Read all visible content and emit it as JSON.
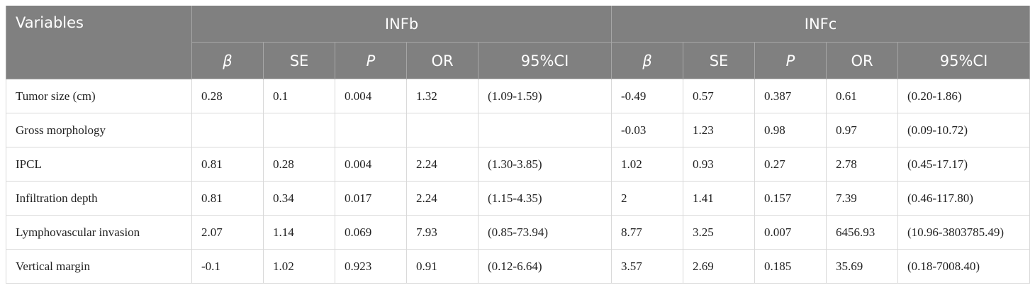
{
  "table": {
    "header": {
      "variables": "Variables",
      "group_infb": "INFb",
      "group_infc": "INFc",
      "cols": [
        "β",
        "SE",
        "P",
        "OR",
        "95%CI"
      ]
    },
    "rows": [
      {
        "variable": "Tumor size (cm)",
        "infb": [
          "0.28",
          "0.1",
          "0.004",
          "1.32",
          "(1.09-1.59)"
        ],
        "infc": [
          "-0.49",
          "0.57",
          "0.387",
          "0.61",
          "(0.20-1.86)"
        ]
      },
      {
        "variable": "Gross morphology",
        "infb": [
          "",
          "",
          "",
          "",
          ""
        ],
        "infc": [
          "-0.03",
          "1.23",
          "0.98",
          "0.97",
          "(0.09-10.72)"
        ]
      },
      {
        "variable": "IPCL",
        "infb": [
          "0.81",
          "0.28",
          "0.004",
          "2.24",
          "(1.30-3.85)"
        ],
        "infc": [
          "1.02",
          "0.93",
          "0.27",
          "2.78",
          "(0.45-17.17)"
        ]
      },
      {
        "variable": "Infiltration depth",
        "infb": [
          "0.81",
          "0.34",
          "0.017",
          "2.24",
          "(1.15-4.35)"
        ],
        "infc": [
          "2",
          "1.41",
          "0.157",
          "7.39",
          "(0.46-117.80)"
        ]
      },
      {
        "variable": "Lymphovascular invasion",
        "infb": [
          "2.07",
          "1.14",
          "0.069",
          "7.93",
          "(0.85-73.94)"
        ],
        "infc": [
          "8.77",
          "3.25",
          "0.007",
          "6456.93",
          "(10.96-3803785.49)"
        ]
      },
      {
        "variable": "Vertical margin",
        "infb": [
          "-0.1",
          "1.02",
          "0.923",
          "0.91",
          "(0.12-6.64)"
        ],
        "infc": [
          "3.57",
          "2.69",
          "0.185",
          "35.69",
          "(0.18-7008.40)"
        ]
      }
    ]
  }
}
